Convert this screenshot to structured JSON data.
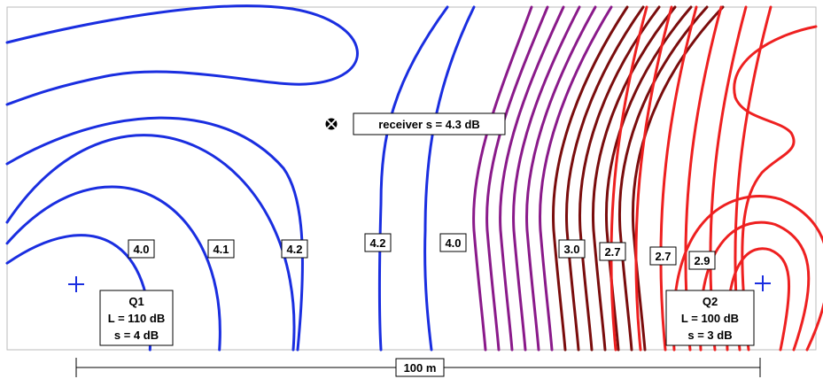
{
  "colors": {
    "blue": "#1a2ee0",
    "purple": "#8a1a8a",
    "dark_red": "#7a0d0d",
    "red": "#ee2020",
    "frame": "#bbbbbb"
  },
  "contour_labels": [
    "4.0",
    "4.1",
    "4.2",
    "4.2",
    "4.0",
    "3.0",
    "2.7",
    "2.7",
    "2.9"
  ],
  "receiver": {
    "icon": "receiver-icon",
    "label": "receiver s = 4.3 dB"
  },
  "sources": [
    {
      "icon": "plus-icon",
      "name": "Q1",
      "level": "L = 110 dB",
      "spread": "s = 4 dB"
    },
    {
      "icon": "plus-icon",
      "name": "Q2",
      "level": "L = 100 dB",
      "spread": "s = 3 dB"
    }
  ],
  "scale_bar": {
    "label": "100 m"
  }
}
